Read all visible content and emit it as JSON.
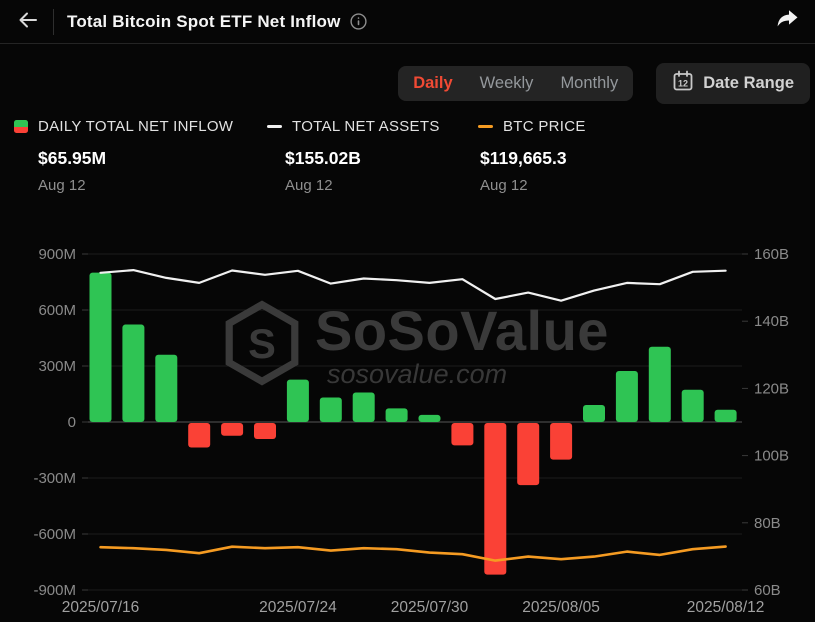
{
  "header": {
    "title": "Total Bitcoin Spot ETF Net Inflow"
  },
  "controls": {
    "tabs": [
      {
        "label": "Daily",
        "active": true
      },
      {
        "label": "Weekly",
        "active": false
      },
      {
        "label": "Monthly",
        "active": false
      }
    ],
    "date_range_label": "Date Range",
    "calendar_icon_day": "12"
  },
  "legend": [
    {
      "label": "DAILY TOTAL NET INFLOW",
      "value": "$65.95M",
      "date": "Aug 12",
      "marker": "green-red-square"
    },
    {
      "label": "TOTAL NET ASSETS",
      "value": "$155.02B",
      "date": "Aug 12",
      "marker": "white-dash"
    },
    {
      "label": "BTC PRICE",
      "value": "$119,665.3",
      "date": "Aug 12",
      "marker": "orange-dash"
    }
  ],
  "watermark": {
    "brand": "SoSoValue",
    "domain": "sosovalue.com"
  },
  "colors": {
    "positive_bar": "#2fc454",
    "negative_bar": "#fa4136",
    "assets_line": "#f0f0f0",
    "btc_line": "#f59b22",
    "active_tab": "#f04a34",
    "grid_line": "#1c1c1c",
    "zero_line": "#2e2e2e",
    "axis_text": "#8a8a8a",
    "x_axis_text": "#a0a0a0",
    "watermark": "#3a3a3a"
  },
  "chart_data": {
    "type": "combo-bar-line",
    "x": [
      "2025/07/16",
      "2025/07/17",
      "2025/07/18",
      "2025/07/21",
      "2025/07/22",
      "2025/07/23",
      "2025/07/24",
      "2025/07/25",
      "2025/07/28",
      "2025/07/29",
      "2025/07/30",
      "2025/07/31",
      "2025/08/01",
      "2025/08/04",
      "2025/08/05",
      "2025/08/06",
      "2025/08/07",
      "2025/08/08",
      "2025/08/11",
      "2025/08/12"
    ],
    "series": [
      {
        "name": "DAILY TOTAL NET INFLOW",
        "type": "bar",
        "unit": "USD millions",
        "axis": "left",
        "values": [
          800,
          522,
          360,
          -131,
          -68,
          -86,
          227,
          131,
          158,
          73,
          38,
          -120,
          -812,
          -333,
          -196,
          91,
          273,
          403,
          173,
          65.95
        ]
      },
      {
        "name": "TOTAL NET ASSETS",
        "type": "line",
        "unit": "USD billions",
        "axis": "right",
        "values": [
          154.4,
          155.2,
          152.9,
          151.4,
          155.1,
          153.8,
          155.0,
          151.2,
          152.7,
          152.2,
          151.4,
          152.5,
          146.6,
          148.5,
          146.1,
          149.1,
          151.4,
          151.0,
          154.7,
          155.02
        ]
      },
      {
        "name": "BTC PRICE",
        "type": "line",
        "unit": "USD",
        "axis": "hidden",
        "values": [
          119380,
          118900,
          118100,
          116520,
          119600,
          118900,
          119380,
          117760,
          118900,
          118430,
          116810,
          116050,
          113000,
          114900,
          113670,
          114900,
          117290,
          115710,
          118430,
          119665.3
        ]
      }
    ],
    "left_axis": {
      "ticks": [
        "900M",
        "600M",
        "300M",
        "0",
        "-300M",
        "-600M",
        "-900M"
      ],
      "range_millions": [
        -900,
        900
      ]
    },
    "right_axis": {
      "ticks": [
        "160B",
        "140B",
        "120B",
        "100B",
        "80B",
        "60B"
      ],
      "range_billions": [
        60,
        160
      ]
    },
    "hidden_btc_axis_range": [
      99000,
      259000
    ],
    "x_axis_labels": [
      {
        "text": "2025/07/16",
        "index": 0
      },
      {
        "text": "2025/07/24",
        "index": 6
      },
      {
        "text": "2025/07/30",
        "index": 10
      },
      {
        "text": "2025/08/05",
        "index": 14
      },
      {
        "text": "2025/08/12",
        "index": 19
      }
    ],
    "grid": true,
    "legend_position": "top"
  }
}
